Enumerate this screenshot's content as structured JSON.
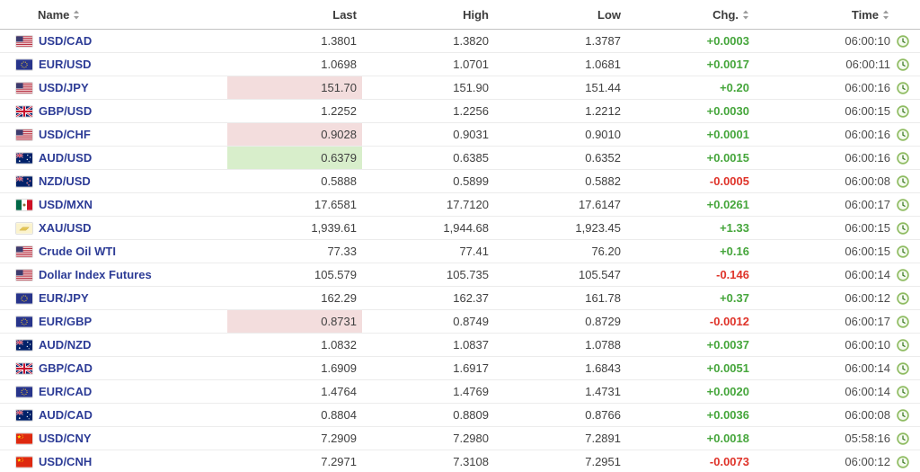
{
  "colors": {
    "positive": "#46a63c",
    "negative": "#df342a",
    "pair_link_blue": "#2d3c96",
    "flash_down_bg": "#f3dddd",
    "flash_up_bg": "#d8eecb",
    "clock_icon_green": "#8fbc62"
  },
  "table": {
    "columns": [
      {
        "key": "name",
        "label": "Name",
        "sortable": true,
        "align": "left",
        "icon": "sort-icon"
      },
      {
        "key": "last",
        "label": "Last",
        "sortable": false,
        "align": "right"
      },
      {
        "key": "high",
        "label": "High",
        "sortable": false,
        "align": "right"
      },
      {
        "key": "low",
        "label": "Low",
        "sortable": false,
        "align": "right"
      },
      {
        "key": "chg",
        "label": "Chg.",
        "sortable": true,
        "align": "right",
        "icon": "sort-icon"
      },
      {
        "key": "time",
        "label": "Time",
        "sortable": true,
        "align": "right",
        "icon": "sort-icon"
      }
    ],
    "rows": [
      {
        "name": "USD/CAD",
        "flag": "us",
        "last": "1.3801",
        "high": "1.3820",
        "low": "1.3787",
        "chg": "+0.0003",
        "direction": "up",
        "time": "06:00:10",
        "last_highlight": null
      },
      {
        "name": "EUR/USD",
        "flag": "eu",
        "last": "1.0698",
        "high": "1.0701",
        "low": "1.0681",
        "chg": "+0.0017",
        "direction": "up",
        "time": "06:00:11",
        "last_highlight": null
      },
      {
        "name": "USD/JPY",
        "flag": "us",
        "last": "151.70",
        "high": "151.90",
        "low": "151.44",
        "chg": "+0.20",
        "direction": "up",
        "time": "06:00:16",
        "last_highlight": "red"
      },
      {
        "name": "GBP/USD",
        "flag": "gb",
        "last": "1.2252",
        "high": "1.2256",
        "low": "1.2212",
        "chg": "+0.0030",
        "direction": "up",
        "time": "06:00:15",
        "last_highlight": null
      },
      {
        "name": "USD/CHF",
        "flag": "us",
        "last": "0.9028",
        "high": "0.9031",
        "low": "0.9010",
        "chg": "+0.0001",
        "direction": "up",
        "time": "06:00:16",
        "last_highlight": "red"
      },
      {
        "name": "AUD/USD",
        "flag": "au",
        "last": "0.6379",
        "high": "0.6385",
        "low": "0.6352",
        "chg": "+0.0015",
        "direction": "up",
        "time": "06:00:16",
        "last_highlight": "green"
      },
      {
        "name": "NZD/USD",
        "flag": "nz",
        "last": "0.5888",
        "high": "0.5899",
        "low": "0.5882",
        "chg": "-0.0005",
        "direction": "down",
        "time": "06:00:08",
        "last_highlight": null
      },
      {
        "name": "USD/MXN",
        "flag": "mx",
        "last": "17.6581",
        "high": "17.7120",
        "low": "17.6147",
        "chg": "+0.0261",
        "direction": "up",
        "time": "06:00:17",
        "last_highlight": null
      },
      {
        "name": "XAU/USD",
        "flag": "gold",
        "last": "1,939.61",
        "high": "1,944.68",
        "low": "1,923.45",
        "chg": "+1.33",
        "direction": "up",
        "time": "06:00:15",
        "last_highlight": null
      },
      {
        "name": "Crude Oil WTI",
        "flag": "us",
        "last": "77.33",
        "high": "77.41",
        "low": "76.20",
        "chg": "+0.16",
        "direction": "up",
        "time": "06:00:15",
        "last_highlight": null
      },
      {
        "name": "Dollar Index Futures",
        "flag": "us",
        "last": "105.579",
        "high": "105.735",
        "low": "105.547",
        "chg": "-0.146",
        "direction": "down",
        "time": "06:00:14",
        "last_highlight": null
      },
      {
        "name": "EUR/JPY",
        "flag": "eu",
        "last": "162.29",
        "high": "162.37",
        "low": "161.78",
        "chg": "+0.37",
        "direction": "up",
        "time": "06:00:12",
        "last_highlight": null
      },
      {
        "name": "EUR/GBP",
        "flag": "eu",
        "last": "0.8731",
        "high": "0.8749",
        "low": "0.8729",
        "chg": "-0.0012",
        "direction": "down",
        "time": "06:00:17",
        "last_highlight": "red"
      },
      {
        "name": "AUD/NZD",
        "flag": "au",
        "last": "1.0832",
        "high": "1.0837",
        "low": "1.0788",
        "chg": "+0.0037",
        "direction": "up",
        "time": "06:00:10",
        "last_highlight": null
      },
      {
        "name": "GBP/CAD",
        "flag": "gb",
        "last": "1.6909",
        "high": "1.6917",
        "low": "1.6843",
        "chg": "+0.0051",
        "direction": "up",
        "time": "06:00:14",
        "last_highlight": null
      },
      {
        "name": "EUR/CAD",
        "flag": "eu",
        "last": "1.4764",
        "high": "1.4769",
        "low": "1.4731",
        "chg": "+0.0020",
        "direction": "up",
        "time": "06:00:14",
        "last_highlight": null
      },
      {
        "name": "AUD/CAD",
        "flag": "au",
        "last": "0.8804",
        "high": "0.8809",
        "low": "0.8766",
        "chg": "+0.0036",
        "direction": "up",
        "time": "06:00:08",
        "last_highlight": null
      },
      {
        "name": "USD/CNY",
        "flag": "cn",
        "last": "7.2909",
        "high": "7.2980",
        "low": "7.2891",
        "chg": "+0.0018",
        "direction": "up",
        "time": "05:58:16",
        "last_highlight": null
      },
      {
        "name": "USD/CNH",
        "flag": "cn",
        "last": "7.2971",
        "high": "7.3108",
        "low": "7.2951",
        "chg": "-0.0073",
        "direction": "down",
        "time": "06:00:12",
        "last_highlight": null
      }
    ]
  }
}
